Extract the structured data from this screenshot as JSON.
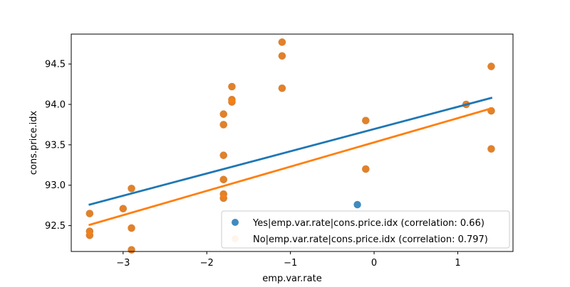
{
  "chart_data": {
    "type": "scatter",
    "xlabel": "emp.var.rate",
    "ylabel": "cons.price.idx",
    "xlim": [
      -3.62,
      1.66
    ],
    "ylim": [
      92.18,
      94.87
    ],
    "x_ticks": [
      -3,
      -2,
      -1,
      0,
      1
    ],
    "x_tick_labels": [
      "−3",
      "−2",
      "−1",
      "0",
      "1"
    ],
    "y_ticks": [
      92.5,
      93.0,
      93.5,
      94.0,
      94.5
    ],
    "y_tick_labels": [
      "92.5",
      "93.0",
      "93.5",
      "94.0",
      "94.5"
    ],
    "grid": false,
    "legend_position": "bottom-right",
    "series": [
      {
        "name": "Yes|emp.var.rate|cons.price.idx (correlation: 0.66)",
        "color": "#1f77b4",
        "points": [
          [
            -3.4,
            92.65
          ],
          [
            -3.4,
            92.43
          ],
          [
            -3.4,
            92.38
          ],
          [
            -3.0,
            92.71
          ],
          [
            -2.9,
            92.96
          ],
          [
            -2.9,
            92.47
          ],
          [
            -2.9,
            92.2
          ],
          [
            -1.8,
            93.88
          ],
          [
            -1.8,
            93.75
          ],
          [
            -1.8,
            93.37
          ],
          [
            -1.8,
            93.07
          ],
          [
            -1.8,
            92.89
          ],
          [
            -1.8,
            92.84
          ],
          [
            -1.7,
            94.22
          ],
          [
            -1.7,
            94.06
          ],
          [
            -1.7,
            94.03
          ],
          [
            -1.1,
            94.77
          ],
          [
            -1.1,
            94.6
          ],
          [
            -1.1,
            94.2
          ],
          [
            -0.2,
            92.76
          ],
          [
            -0.1,
            93.8
          ],
          [
            -0.1,
            93.2
          ],
          [
            1.1,
            94.0
          ],
          [
            1.4,
            94.47
          ],
          [
            1.4,
            93.92
          ],
          [
            1.4,
            93.45
          ]
        ],
        "fit_line": {
          "x": [
            -3.4,
            1.4
          ],
          "y": [
            92.76,
            94.08
          ]
        }
      },
      {
        "name": "No|emp.var.rate|cons.price.idx (correlation: 0.797)",
        "color": "#ff7f0e",
        "points": [
          [
            -3.4,
            92.65
          ],
          [
            -3.4,
            92.43
          ],
          [
            -3.4,
            92.38
          ],
          [
            -3.0,
            92.71
          ],
          [
            -2.9,
            92.96
          ],
          [
            -2.9,
            92.47
          ],
          [
            -2.9,
            92.2
          ],
          [
            -1.8,
            93.88
          ],
          [
            -1.8,
            93.75
          ],
          [
            -1.8,
            93.37
          ],
          [
            -1.8,
            93.07
          ],
          [
            -1.8,
            92.89
          ],
          [
            -1.8,
            92.84
          ],
          [
            -1.7,
            94.22
          ],
          [
            -1.7,
            94.06
          ],
          [
            -1.7,
            94.03
          ],
          [
            -1.1,
            94.77
          ],
          [
            -1.1,
            94.6
          ],
          [
            -1.1,
            94.2
          ],
          [
            -0.1,
            93.8
          ],
          [
            -0.1,
            93.2
          ],
          [
            1.1,
            94.0
          ],
          [
            1.4,
            94.47
          ],
          [
            1.4,
            93.92
          ],
          [
            1.4,
            93.45
          ]
        ],
        "fit_line": {
          "x": [
            -3.4,
            1.4
          ],
          "y": [
            92.51,
            93.95
          ]
        }
      }
    ]
  }
}
